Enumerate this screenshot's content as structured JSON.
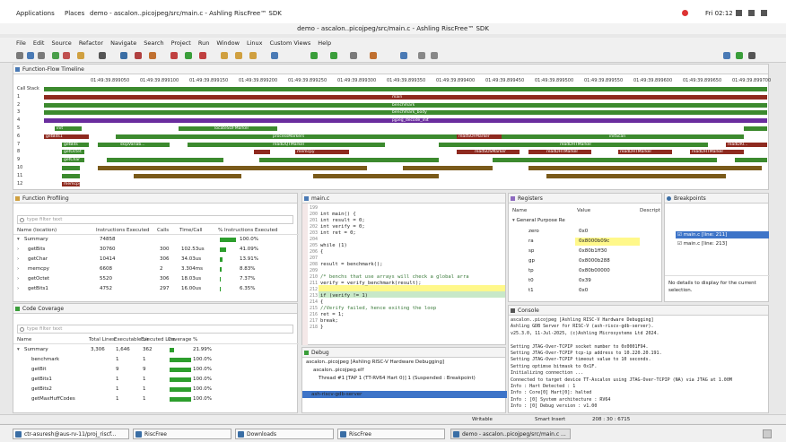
{
  "topbar": {
    "applications": "Applications",
    "places": "Places",
    "window_title": "demo - ascalon..picojpeg/src/main.c - Ashling RiscFree™ SDK",
    "clock": "Fri 02:12"
  },
  "titlebar": "demo - ascalon..picojpeg/src/main.c - Ashling RiscFree™ SDK",
  "menu": [
    "File",
    "Edit",
    "Source",
    "Refactor",
    "Navigate",
    "Search",
    "Project",
    "Run",
    "Window",
    "Linux",
    "Custom Views",
    "Help"
  ],
  "timeline": {
    "tab": "Function-Flow Timeline",
    "times": [
      "01:49:39.899050",
      "01:49:39.899100",
      "01:49:39.899150",
      "01:49:39.899200",
      "01:49:39.899250",
      "01:49:39.899300",
      "01:49:39.899350",
      "01:49:39.899400",
      "01:49:39.899450",
      "01:49:39.899500",
      "01:49:39.899550",
      "01:49:39.899600",
      "01:49:39.899650",
      "01:49:39.899700"
    ],
    "rows": [
      "Call Stack",
      "1",
      "2",
      "3",
      "4",
      "5",
      "6",
      "7",
      "8",
      "9",
      "10",
      "11",
      "12"
    ],
    "labels": {
      "main": "main",
      "benchmark": "benchmark",
      "bench_body": "benchmark_body",
      "pjpeg": "pjpeg_decode_init",
      "init": "init",
      "locateSOF": "locateSOFMarker",
      "getBits1": "getBits1",
      "processMarkers": "processMarkers",
      "readSOF": "readSOFMarker",
      "initScan": "initScan",
      "getBits": "getBits",
      "skipVariab": "skipVariab...",
      "readDQT": "readDQTMarker",
      "readDHT": "readDHTMarker",
      "readSOS": "readSOSMarker",
      "readDRI": "readDRI...",
      "getOctet": "getOctet",
      "memcpy": "memcpy",
      "getChar": "getChar"
    }
  },
  "profiling": {
    "tab": "Function Profiling",
    "filter_placeholder": "type filter text",
    "headers": [
      "Name (location)",
      "Instructions Executed",
      "Calls",
      "Time/Call",
      "% Instructions Executed"
    ],
    "rows": [
      {
        "name": "Summary",
        "instr": "74858",
        "calls": "",
        "time": "",
        "pct": "100.0%",
        "frac": 1.0
      },
      {
        "name": "getBits",
        "instr": "30760",
        "calls": "300",
        "time": "102.53us",
        "pct": "41.09%",
        "frac": 0.4109
      },
      {
        "name": "getChar",
        "instr": "10414",
        "calls": "306",
        "time": "34.03us",
        "pct": "13.91%",
        "frac": 0.1391
      },
      {
        "name": "memcpy",
        "instr": "6608",
        "calls": "2",
        "time": "3.304ms",
        "pct": "8.83%",
        "frac": 0.0883
      },
      {
        "name": "getOctet",
        "instr": "5520",
        "calls": "306",
        "time": "18.03us",
        "pct": "7.37%",
        "frac": 0.0737
      },
      {
        "name": "getBits1",
        "instr": "4752",
        "calls": "297",
        "time": "16.00us",
        "pct": "6.35%",
        "frac": 0.0635
      }
    ]
  },
  "coverage": {
    "tab": "Code Coverage",
    "filter_placeholder": "type filter text",
    "headers": [
      "Name",
      "Total Lines",
      "Executable Lir",
      "Executed Line",
      "Coverage %"
    ],
    "rows": [
      {
        "name": "Summary",
        "total": "3,306",
        "exec": "1,646",
        "executed": "362",
        "pct": "21.99%",
        "frac": 0.2199
      },
      {
        "name": "benchmark",
        "total": "",
        "exec": "1",
        "executed": "1",
        "pct": "100.0%",
        "frac": 1.0
      },
      {
        "name": "getBit",
        "total": "",
        "exec": "9",
        "executed": "9",
        "pct": "100.0%",
        "frac": 1.0
      },
      {
        "name": "getBits1",
        "total": "",
        "exec": "1",
        "executed": "1",
        "pct": "100.0%",
        "frac": 1.0
      },
      {
        "name": "getBits2",
        "total": "",
        "exec": "1",
        "executed": "1",
        "pct": "100.0%",
        "frac": 1.0
      },
      {
        "name": "getMaxHuffCodes",
        "total": "",
        "exec": "1",
        "executed": "1",
        "pct": "100.0%",
        "frac": 1.0
      }
    ]
  },
  "editor": {
    "tab": "main.c",
    "lines": [
      {
        "n": "199",
        "code": ""
      },
      {
        "n": "200",
        "code": "int main() {"
      },
      {
        "n": "201",
        "code": "    int result = 0;"
      },
      {
        "n": "202",
        "code": "    int verify = 0;"
      },
      {
        "n": "203",
        "code": "    int ret = 0;"
      },
      {
        "n": "204",
        "code": ""
      },
      {
        "n": "205",
        "code": "    while (1)"
      },
      {
        "n": "206",
        "code": "    {"
      },
      {
        "n": "207",
        "code": ""
      },
      {
        "n": "208",
        "code": "        result = benchmark();"
      },
      {
        "n": "209",
        "code": ""
      },
      {
        "n": "210",
        "code": "        /* benchs that use arrays will check a global arra"
      },
      {
        "n": "211",
        "code": "        verify = verify_benchmark(result);"
      },
      {
        "n": "212",
        "code": ""
      },
      {
        "n": "213",
        "code": "        if (verify != 1)"
      },
      {
        "n": "214",
        "code": "        {"
      },
      {
        "n": "215",
        "code": "            //Verify failed, hence exiting the loop"
      },
      {
        "n": "216",
        "code": "            ret = 1;"
      },
      {
        "n": "217",
        "code": "            break;"
      },
      {
        "n": "218",
        "code": "        }"
      }
    ]
  },
  "registers": {
    "tab": "Registers",
    "headers": [
      "Name",
      "Value",
      "Descript"
    ],
    "group": "General Purpose Re",
    "rows": [
      {
        "name": "zero",
        "value": "0x0"
      },
      {
        "name": "ra",
        "value": "0x8000b09c"
      },
      {
        "name": "sp",
        "value": "0x80b1ff30"
      },
      {
        "name": "gp",
        "value": "0x8000b288"
      },
      {
        "name": "tp",
        "value": "0x80b00000"
      },
      {
        "name": "t0",
        "value": "0x39"
      },
      {
        "name": "t1",
        "value": "0x0"
      }
    ]
  },
  "breakpoints": {
    "tab": "Breakpoints",
    "items": [
      "main.c [line: 211]",
      "main.c [line: 213]"
    ],
    "details": "No details to display for the current selection."
  },
  "debug": {
    "tab": "Debug",
    "items": [
      "ascalon..picojpeg [Ashling RISC-V Hardware Debugging]",
      "ascalon..picojpeg.elf",
      "Thread #1 [TAP 1 (TT-RV64 Hart 0)] 1 (Suspended : Breakpoint)",
      "main() at main.c:211 0x800080a4",
      "ash-riscv-gdb-server"
    ]
  },
  "console": {
    "tab": "Console",
    "lines": [
      "ascalon..picojpeg [Ashling RISC-V Hardware Debugging]",
      "Ashling GDB Server for RISC-V (ash-riscv-gdb-server).",
      "v25.3.0, 11-Jul-2025, (c)Ashling Microsystems Ltd 2024.",
      "",
      "Setting JTAG-Over-TCPIP socket number to 0x0001F94.",
      "Setting JTAG-Over-TCPIP tcp-ip address to 10.220.20.191.",
      "Setting JTAG-Over-TCPIP timeout value to 10 seconds.",
      "Setting optimse bitmask to 0x1F.",
      "Initializing connection ...",
      "Connected to target device TT-Ascalon using JTAG-Over-TCPIP (NA) via JTAG at 1.00M",
      "Info : Hart Detected : 1",
      "Info : Core[0] Hart[0]: halted",
      "Info : [0] System architecture : RV64",
      "Info : [0] Debug version : v1.00"
    ]
  },
  "statusbar": {
    "writable": "Writable",
    "insert": "Smart Insert",
    "pos": "208 : 30 : 6715"
  },
  "taskbar": [
    "ctr-asuresh@aus-rv-11/proj_riscf...",
    "RiscFree",
    "Downloads",
    "RiscFree",
    "demo - ascalon..picojpeg/src/main.c ..."
  ],
  "colors": {
    "green": "#3c8a2e",
    "red": "#8e2a1f",
    "purple": "#6a2d9e",
    "highlight": "#fff88a"
  }
}
